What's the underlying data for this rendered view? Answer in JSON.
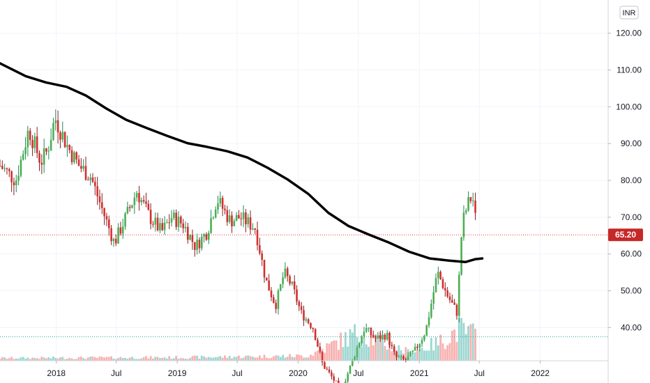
{
  "chart_data": {
    "type": "candlestick",
    "currency": "INR",
    "last_price": 65.2,
    "last_price_label": "65.20",
    "ylim": [
      31,
      129
    ],
    "y_ticks": [
      {
        "value": 120,
        "label": "120.00"
      },
      {
        "value": 110,
        "label": "110.00"
      },
      {
        "value": 100,
        "label": "100.00"
      },
      {
        "value": 90,
        "label": "90.00"
      },
      {
        "value": 80,
        "label": "80.00"
      },
      {
        "value": 70,
        "label": "70.00"
      },
      {
        "value": 60,
        "label": "60.00"
      },
      {
        "value": 50,
        "label": "50.00"
      },
      {
        "value": 40,
        "label": "40.00"
      }
    ],
    "x_range": [
      "2017-07-15",
      "2022-07-25"
    ],
    "x_ticks": [
      {
        "date": "2018-01-01",
        "label": "2018"
      },
      {
        "date": "2018-07-01",
        "label": "Jul"
      },
      {
        "date": "2019-01-01",
        "label": "2019"
      },
      {
        "date": "2019-07-01",
        "label": "Jul"
      },
      {
        "date": "2020-01-01",
        "label": "2020"
      },
      {
        "date": "2020-07-01",
        "label": "Jul"
      },
      {
        "date": "2021-01-01",
        "label": "2021"
      },
      {
        "date": "2021-07-01",
        "label": "Jul"
      },
      {
        "date": "2022-01-01",
        "label": "2022"
      }
    ],
    "reference_lines": [
      {
        "value": 65.2,
        "style": "dotted",
        "color": "#e53935"
      },
      {
        "value": 37.5,
        "style": "dotted",
        "color": "#26a69a"
      }
    ],
    "moving_average": {
      "color": "#000000",
      "points": [
        [
          "2017-07-15",
          111.8
        ],
        [
          "2017-10-01",
          108.3
        ],
        [
          "2017-12-01",
          106.6
        ],
        [
          "2018-02-01",
          105.4
        ],
        [
          "2018-04-01",
          103.0
        ],
        [
          "2018-06-01",
          99.5
        ],
        [
          "2018-08-01",
          96.4
        ],
        [
          "2018-10-01",
          94.2
        ],
        [
          "2018-12-01",
          92.1
        ],
        [
          "2019-02-01",
          90.1
        ],
        [
          "2019-04-01",
          89.1
        ],
        [
          "2019-06-01",
          87.9
        ],
        [
          "2019-08-01",
          86.2
        ],
        [
          "2019-10-01",
          83.4
        ],
        [
          "2019-12-01",
          80.2
        ],
        [
          "2020-02-01",
          76.3
        ],
        [
          "2020-04-01",
          71.2
        ],
        [
          "2020-06-01",
          67.6
        ],
        [
          "2020-08-01",
          65.3
        ],
        [
          "2020-10-01",
          63.1
        ],
        [
          "2020-12-01",
          60.6
        ],
        [
          "2021-02-01",
          58.8
        ],
        [
          "2021-04-01",
          58.2
        ],
        [
          "2021-05-20",
          57.8
        ],
        [
          "2021-06-20",
          58.6
        ],
        [
          "2021-07-10",
          58.8
        ]
      ]
    },
    "price_path": [
      [
        "2017-07-15",
        84
      ],
      [
        "2017-09-01",
        80
      ],
      [
        "2017-10-10",
        94
      ],
      [
        "2017-11-15",
        85
      ],
      [
        "2017-12-05",
        88
      ],
      [
        "2017-12-28",
        97
      ],
      [
        "2018-02-05",
        89
      ],
      [
        "2018-03-10",
        84
      ],
      [
        "2018-04-15",
        81
      ],
      [
        "2018-05-20",
        72
      ],
      [
        "2018-06-25",
        63
      ],
      [
        "2018-07-25",
        69
      ],
      [
        "2018-09-01",
        77
      ],
      [
        "2018-10-10",
        70
      ],
      [
        "2018-11-15",
        66
      ],
      [
        "2018-12-15",
        70
      ],
      [
        "2019-01-20",
        68
      ],
      [
        "2019-02-25",
        62
      ],
      [
        "2019-04-01",
        66
      ],
      [
        "2019-05-01",
        75
      ],
      [
        "2019-06-10",
        69
      ],
      [
        "2019-07-10",
        70
      ],
      [
        "2019-08-25",
        67
      ],
      [
        "2019-09-25",
        53
      ],
      [
        "2019-10-25",
        46
      ],
      [
        "2019-11-20",
        55
      ],
      [
        "2019-12-15",
        51
      ],
      [
        "2020-01-10",
        44
      ],
      [
        "2020-02-15",
        40
      ],
      [
        "2020-03-15",
        30
      ],
      [
        "2020-05-10",
        23
      ],
      [
        "2020-06-01",
        28
      ],
      [
        "2020-06-25",
        34
      ],
      [
        "2020-07-20",
        40
      ],
      [
        "2020-08-20",
        37
      ],
      [
        "2020-09-25",
        38
      ],
      [
        "2020-10-20",
        32
      ],
      [
        "2020-11-20",
        31
      ],
      [
        "2020-12-20",
        34
      ],
      [
        "2021-01-20",
        39
      ],
      [
        "2021-02-25",
        55
      ],
      [
        "2021-03-25",
        49
      ],
      [
        "2021-04-25",
        44
      ],
      [
        "2021-05-10",
        68
      ],
      [
        "2021-05-25",
        73
      ],
      [
        "2021-06-10",
        76
      ],
      [
        "2021-06-20",
        69
      ],
      [
        "2021-06-25",
        65.2
      ]
    ],
    "volume_envelope": [
      [
        "2017-07-15",
        0.08
      ],
      [
        "2019-01-01",
        0.1
      ],
      [
        "2020-02-01",
        0.15
      ],
      [
        "2020-04-15",
        0.5
      ],
      [
        "2020-07-01",
        0.85
      ],
      [
        "2020-09-01",
        0.6
      ],
      [
        "2020-12-01",
        0.25
      ],
      [
        "2021-03-01",
        0.55
      ],
      [
        "2021-05-01",
        0.95
      ],
      [
        "2021-06-25",
        0.75
      ]
    ]
  }
}
